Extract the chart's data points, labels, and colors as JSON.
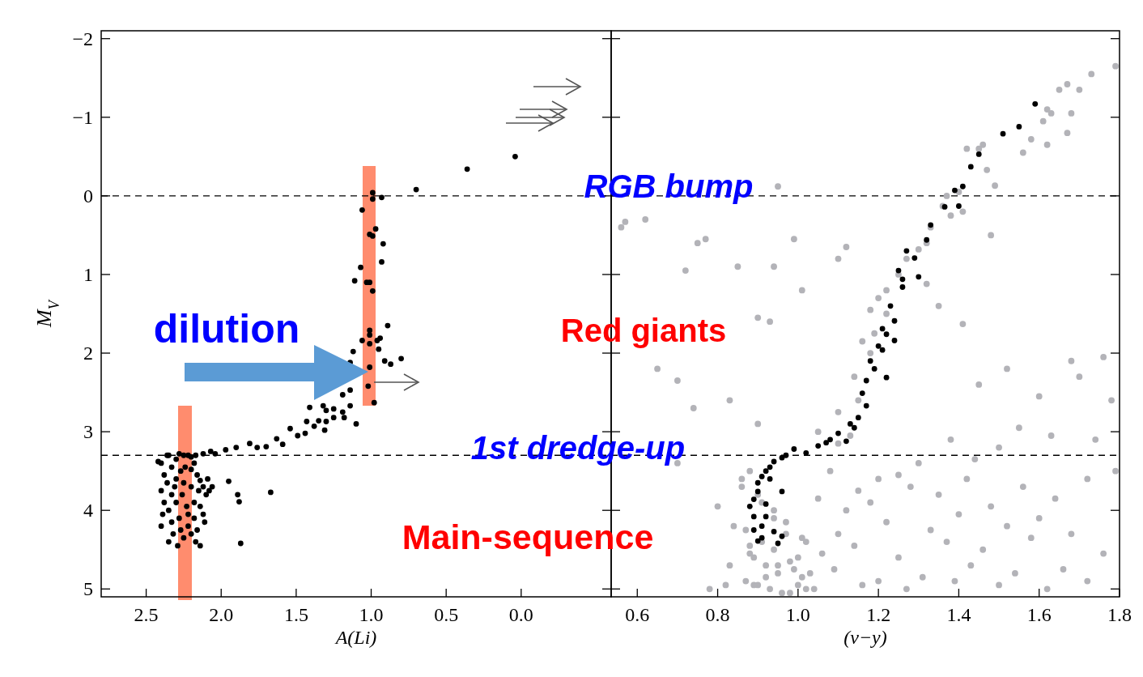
{
  "chart_data": [
    {
      "type": "scatter",
      "xlabel": "A(Li)",
      "ylabel": "M$_{V}$",
      "xlim": [
        2.8,
        -0.6
      ],
      "ylim": [
        5.1,
        -2.1
      ],
      "xticks": [
        2.5,
        {
          "value": 2,
          "label": "2.0"
        },
        1.5,
        {
          "value": 1,
          "label": "1.0"
        },
        0.5,
        {
          "value": 0,
          "label": "0.0"
        }
      ],
      "yticks": [
        {
          "value": -2,
          "label": "−2"
        },
        {
          "value": -1,
          "label": "−1"
        },
        0,
        1,
        2,
        3,
        4,
        5
      ],
      "marker": "circle",
      "ref_lines": [
        {
          "axis": "y",
          "value": 0,
          "color": "#000000",
          "line_style": "dashed"
        },
        {
          "axis": "y",
          "value": 3.3,
          "color": "#000000",
          "line_style": "dashed"
        }
      ],
      "annotations": [
        "dilution",
        "RGB bump",
        "Red giants",
        "1st dredge-up",
        "Main-sequence"
      ],
      "series": [
        {
          "color": "#000000",
          "x": [
            2.4,
            2.38,
            2.35,
            2.33,
            2.3,
            2.28,
            2.25,
            2.22,
            2.2,
            2.17,
            2.12,
            2.42,
            2.36,
            2.4,
            2.38,
            2.33,
            2.3,
            2.27,
            2.24,
            2.2,
            2.18,
            2.16,
            2.14,
            2.12,
            2.1,
            2.08,
            2.15,
            2.2,
            2.25,
            2.3,
            2.35,
            2.39,
            2.33,
            2.28,
            2.23,
            2.18,
            2.14,
            2.12,
            2.18,
            2.22,
            2.27,
            2.32,
            2.35,
            2.29,
            2.25,
            2.2,
            2.16,
            2.14,
            2.17,
            2.22,
            2.26,
            2.31,
            2.36,
            2.09,
            2.06,
            2.11,
            2.4,
            2.04,
            1.95,
            1.89,
            1.88,
            1.87,
            1.67,
            2.07,
            1.97,
            1.9,
            1.81,
            1.76,
            1.7,
            1.63,
            1.59,
            1.54,
            1.49,
            1.44,
            1.43,
            1.38,
            1.35,
            1.41,
            1.32,
            1.3,
            1.25,
            1.25,
            1.19,
            1.18,
            1.3,
            1.31,
            1.14,
            1.19,
            1.14,
            1.14,
            1.12,
            1.1,
            1.06,
            1.01,
            1.01,
            1.01,
            0.94,
            0.96,
            0.95,
            0.91,
            0.87,
            0.8,
            0.89,
            1.01,
            1.02,
            0.98,
            1.06,
            0.99,
            0.99,
            0.93,
            0.97,
            1.01,
            0.99,
            0.92,
            0.93,
            1.07,
            1.11,
            1.03,
            1.01,
            0.99,
            0.7,
            0.36,
            0.04
          ],
          "values": [
            3.4,
            3.55,
            3.3,
            3.45,
            3.35,
            3.28,
            3.3,
            3.3,
            3.32,
            3.3,
            3.28,
            3.38,
            3.65,
            3.75,
            3.9,
            3.8,
            3.6,
            3.5,
            3.45,
            3.48,
            3.4,
            3.55,
            3.62,
            3.7,
            3.8,
            3.75,
            3.75,
            3.7,
            3.65,
            3.9,
            4.0,
            4.05,
            4.15,
            4.1,
            3.95,
            3.9,
            3.95,
            4.05,
            4.1,
            4.2,
            4.25,
            4.3,
            4.4,
            4.45,
            4.35,
            4.3,
            4.25,
            4.45,
            4.4,
            4.05,
            3.8,
            3.7,
            3.3,
            3.6,
            3.7,
            4.15,
            4.2,
            3.28,
            3.63,
            3.8,
            3.89,
            4.42,
            3.77,
            3.25,
            3.23,
            3.2,
            3.15,
            3.2,
            3.19,
            3.09,
            3.16,
            2.96,
            3.05,
            3.02,
            2.87,
            2.93,
            2.86,
            2.69,
            2.67,
            2.73,
            2.71,
            2.82,
            2.75,
            2.82,
            2.87,
            2.98,
            2.67,
            2.53,
            2.47,
            2.12,
            1.98,
            2.9,
            1.84,
            1.88,
            1.71,
            1.77,
            1.81,
            1.84,
            1.95,
            2.1,
            2.14,
            2.07,
            1.65,
            2.18,
            2.42,
            2.63,
            0.18,
            -0.04,
            0.04,
            0.02,
            0.42,
            0.49,
            0.51,
            0.61,
            0.84,
            0.91,
            1.08,
            1.1,
            1.1,
            1.21,
            -0.08,
            -0.34,
            -0.5
          ]
        }
      ]
    },
    {
      "type": "scatter",
      "xlabel": "(v−y)",
      "xlim": [
        0.535,
        1.8
      ],
      "ylim": [
        5.1,
        -2.1
      ],
      "xticks": [
        0.6,
        0.8,
        {
          "value": 1,
          "label": "1.0"
        },
        1.2,
        1.4,
        1.6,
        1.8
      ],
      "yticks": [
        -2,
        -1,
        0,
        1,
        2,
        3,
        4,
        5
      ],
      "tick_labels": "x",
      "marker": "circle",
      "ref_lines": [
        {
          "axis": "y",
          "value": 0,
          "color": "#000000",
          "line_style": "dashed"
        },
        {
          "axis": "y",
          "value": 3.3,
          "color": "#000000",
          "line_style": "dashed"
        }
      ],
      "series": [
        {
          "color": "#b3b3b8",
          "x": [
            1.79,
            1.73,
            1.67,
            1.7,
            1.65,
            1.62,
            1.63,
            1.68,
            1.61,
            1.67,
            1.58,
            1.62,
            1.56,
            1.46,
            1.45,
            1.42,
            1.47,
            1.49,
            1.4,
            1.37,
            1.41,
            1.38,
            1.36,
            1.33,
            1.32,
            1.3,
            1.27,
            1.25,
            1.22,
            1.2,
            1.18,
            1.22,
            1.19,
            1.16,
            1.18,
            1.14,
            1.1,
            1.05,
            1.15,
            1.1,
            1.13,
            1.1,
            1.12,
            0.95,
            0.99,
            0.94,
            0.85,
            0.77,
            0.72,
            0.9,
            0.93,
            1.01,
            0.57,
            0.62,
            0.56,
            0.75,
            1.32,
            1.41,
            1.48,
            1.35,
            1.68,
            1.76,
            0.65,
            0.7,
            0.74,
            0.83,
            0.9,
            1.45,
            1.52,
            1.6,
            1.7,
            1.78,
            1.55,
            1.63,
            1.74,
            1.5,
            1.44,
            1.38,
            1.3,
            1.25,
            1.2,
            1.15,
            1.08,
            1.05,
            1.12,
            1.18,
            1.28,
            1.35,
            1.42,
            1.48,
            1.56,
            1.64,
            1.72,
            1.79,
            1.6,
            1.52,
            1.4,
            1.33,
            1.22,
            1.1,
            1.02,
            1.06,
            1.14,
            1.25,
            1.37,
            1.46,
            1.58,
            1.68,
            1.76,
            1.66,
            1.54,
            1.43,
            1.31,
            1.2,
            1.09,
            1.0,
            1.04,
            1.16,
            1.27,
            1.39,
            1.5,
            1.62,
            1.72,
            0.8,
            0.84,
            0.88,
            0.86,
            0.89,
            0.92,
            0.95,
            0.98,
            1.01,
            0.87,
            0.9,
            0.93,
            0.96,
            0.99,
            1.02,
            0.88,
            0.91,
            0.94,
            0.97,
            1.0,
            1.03,
            0.89,
            0.92,
            0.95,
            0.98,
            0.86,
            0.9,
            0.94,
            0.97,
            1.01,
            0.83,
            0.82,
            0.78,
            0.7,
            0.88,
            0.91,
            0.94,
            0.87
          ],
          "values": [
            -1.65,
            -1.55,
            -1.42,
            -1.35,
            -1.35,
            -1.1,
            -1.05,
            -1.05,
            -0.95,
            -0.8,
            -0.72,
            -0.65,
            -0.55,
            -0.65,
            -0.6,
            -0.6,
            -0.33,
            -0.13,
            -0.05,
            0.0,
            0.2,
            0.25,
            0.13,
            0.4,
            0.6,
            0.68,
            0.8,
            1.0,
            1.2,
            1.3,
            1.45,
            1.5,
            1.75,
            1.85,
            2.0,
            2.3,
            2.75,
            3.0,
            2.6,
            3.15,
            3.05,
            0.8,
            0.65,
            -0.12,
            0.55,
            0.9,
            0.9,
            0.55,
            0.95,
            1.55,
            1.6,
            1.2,
            0.33,
            0.3,
            0.4,
            0.6,
            1.12,
            1.63,
            0.5,
            1.4,
            2.1,
            2.05,
            2.2,
            2.35,
            2.7,
            2.6,
            2.9,
            2.4,
            2.2,
            2.55,
            2.3,
            2.6,
            2.95,
            3.05,
            3.1,
            3.2,
            3.35,
            3.1,
            3.4,
            3.55,
            3.6,
            3.75,
            3.5,
            3.85,
            4.0,
            3.9,
            3.7,
            3.8,
            3.6,
            3.95,
            3.7,
            3.85,
            3.6,
            3.5,
            4.1,
            4.2,
            4.05,
            4.25,
            4.15,
            4.3,
            4.4,
            4.55,
            4.45,
            4.6,
            4.4,
            4.5,
            4.35,
            4.3,
            4.55,
            4.75,
            4.8,
            4.7,
            4.85,
            4.9,
            4.75,
            4.95,
            5.0,
            4.95,
            5.0,
            4.9,
            4.95,
            5.0,
            4.9,
            3.95,
            4.2,
            4.45,
            3.7,
            4.6,
            4.7,
            4.8,
            4.65,
            4.85,
            4.9,
            4.95,
            5.0,
            5.05,
            4.75,
            5.0,
            4.55,
            4.4,
            4.5,
            4.3,
            4.6,
            4.8,
            4.95,
            4.85,
            4.7,
            5.05,
            3.6,
            3.8,
            4.0,
            4.15,
            4.35,
            4.7,
            4.95,
            5.0,
            3.4,
            3.5,
            3.9,
            4.1,
            4.25
          ]
        },
        {
          "color": "#000000",
          "x": [
            1.59,
            1.55,
            1.51,
            1.45,
            1.43,
            1.39,
            1.41,
            1.365,
            1.4,
            1.33,
            1.32,
            1.29,
            1.26,
            1.3,
            1.26,
            1.24,
            1.21,
            1.22,
            1.2,
            1.24,
            1.21,
            1.18,
            1.22,
            1.17,
            1.16,
            1.17,
            1.15,
            1.13,
            1.1,
            1.12,
            1.07,
            1.02,
            0.99,
            0.96,
            0.93,
            0.91,
            0.9,
            0.89,
            0.92,
            0.89,
            0.92,
            0.91,
            0.94,
            0.9,
            0.96,
            0.96,
            1.05,
            1.08,
            0.97,
            0.94,
            0.9,
            0.88,
            0.93,
            0.91,
            0.95,
            0.92,
            0.89,
            1.14,
            1.19,
            1.23,
            1.25,
            1.27
          ],
          "values": [
            -1.17,
            -0.88,
            -0.79,
            -0.53,
            -0.37,
            -0.07,
            -0.12,
            0.14,
            0.13,
            0.37,
            0.56,
            0.79,
            1.06,
            1.03,
            1.16,
            1.59,
            1.69,
            1.76,
            1.91,
            1.84,
            1.96,
            2.1,
            2.31,
            2.35,
            2.51,
            2.67,
            2.82,
            2.9,
            3.02,
            3.12,
            3.14,
            3.27,
            3.22,
            3.33,
            3.45,
            3.57,
            3.76,
            3.86,
            3.92,
            4.08,
            4.08,
            4.2,
            4.27,
            4.39,
            4.33,
            3.76,
            3.18,
            3.1,
            3.3,
            3.38,
            3.65,
            3.95,
            3.6,
            4.35,
            4.42,
            3.5,
            4.25,
            2.95,
            2.2,
            1.4,
            0.95,
            0.7
          ]
        }
      ]
    }
  ]
}
